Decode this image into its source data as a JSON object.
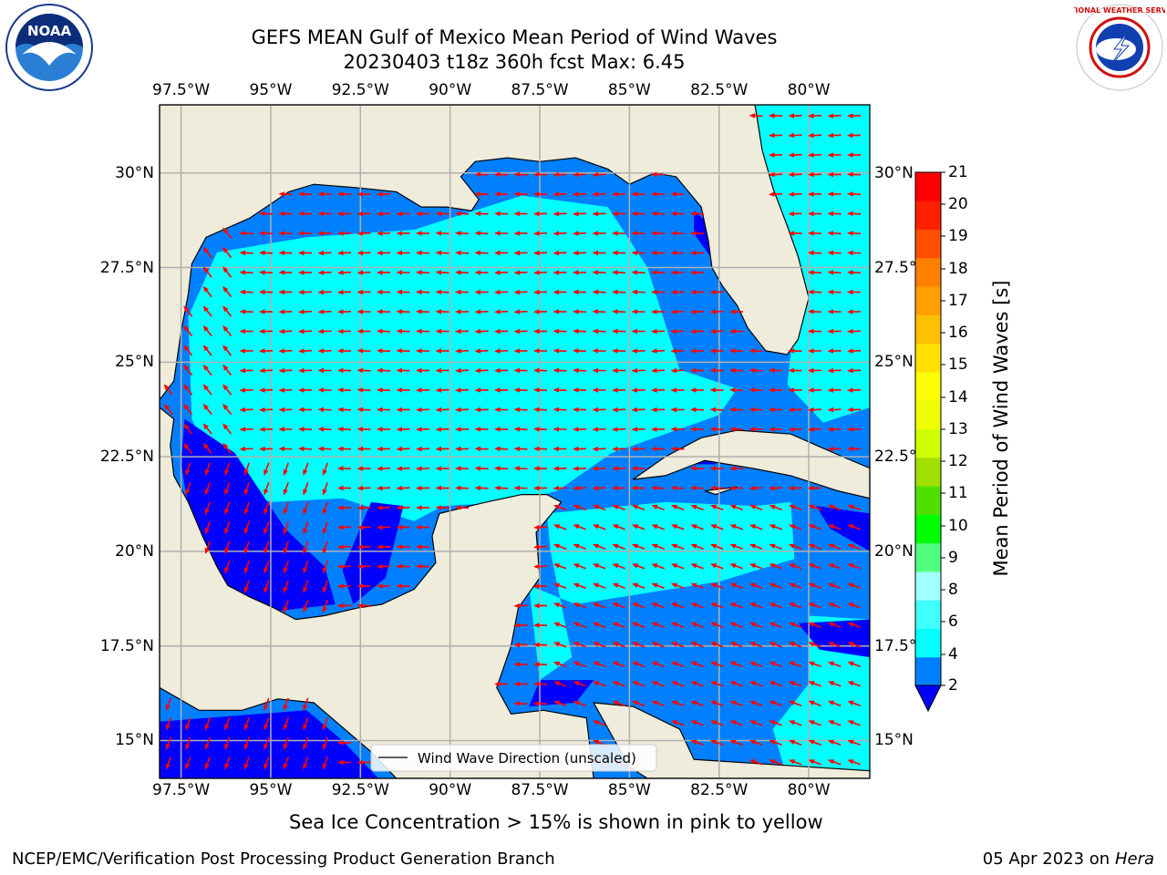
{
  "title": {
    "line1": "GEFS MEAN Gulf of Mexico Mean Period of Wind Waves",
    "line2": "20230403 t18z 360h fcst   Max: 6.45"
  },
  "logos": {
    "left": {
      "icon": "noaa-logo",
      "text": "NOAA"
    },
    "right": {
      "icon": "nws-logo",
      "text": "NATIONAL WEATHER SERVICE"
    }
  },
  "map": {
    "lon_ticks": [
      "97.5°W",
      "95°W",
      "92.5°W",
      "90°W",
      "87.5°W",
      "85°W",
      "82.5°W",
      "80°W"
    ],
    "lat_ticks_left": [
      "30°N",
      "27.5°N",
      "25°N",
      "22.5°N",
      "20°N",
      "17.5°N",
      "15°N"
    ],
    "lat_ticks_right": [
      "30°N",
      "27.5°",
      "25°N",
      "22.5°",
      "20°N",
      "17.5°",
      "15°N"
    ],
    "lon_range": [
      -98.1,
      -78.3
    ],
    "lat_range": [
      14.0,
      31.8
    ],
    "legend_label": "Wind Wave Direction (unscaled)",
    "colors": {
      "land": "#efecdc",
      "grid": "#b0b0b0",
      "arrow": "#ff0000",
      "ocean_low": "#0000ff",
      "ocean_2_4": "#0080ff",
      "ocean_4_6": "#00ffff"
    },
    "max_value": 6.45
  },
  "colorbar": {
    "label": "Mean Period of Wind Waves [s]",
    "ticks": [
      "21",
      "20",
      "19",
      "18",
      "17",
      "16",
      "15",
      "14",
      "13",
      "12",
      "11",
      "10",
      "9",
      "8",
      "6",
      "4",
      "2"
    ],
    "colors": [
      "#0080ff",
      "#00ffff",
      "#40ffff",
      "#a0ffff",
      "#50ff80",
      "#00ff00",
      "#50e000",
      "#a0e000",
      "#d0ff00",
      "#f0ff00",
      "#ffff00",
      "#ffe000",
      "#ffc000",
      "#ffa000",
      "#ff8000",
      "#ff5000",
      "#ff2000",
      "#ff0000"
    ],
    "under_color": "#0000ff"
  },
  "annotation": "Sea Ice Concentration > 15% is shown in pink to yellow",
  "footer": {
    "left": "NCEP/EMC/Verification Post Processing Product Generation Branch",
    "right_date": "05 Apr 2023 on ",
    "right_host": "Hera"
  }
}
